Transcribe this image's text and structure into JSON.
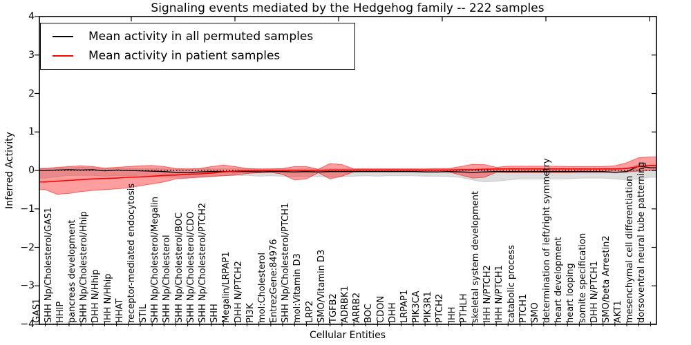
{
  "legend": {
    "items": [
      {
        "label": "Mean activity in all permuted samples",
        "color": "#000000"
      },
      {
        "label": "Mean activity in patient samples",
        "color": "#ff0000"
      }
    ]
  },
  "chart_data": {
    "type": "line",
    "title": "Signaling events mediated by the Hedgehog family -- 222 samples",
    "xlabel": "Cellular Entities",
    "ylabel": "Inferred Activity",
    "ylim": [
      -4,
      4
    ],
    "yticks": [
      4,
      3,
      2,
      1,
      0,
      -1,
      -2,
      -3,
      -4
    ],
    "ytick_labels": [
      "4",
      "3",
      "2",
      "1",
      "0",
      "−1",
      "−2",
      "−3",
      "−4"
    ],
    "grid": false,
    "legend_position": "upper left",
    "zero_line": 0,
    "categories": [
      "GAS1",
      "SHH Np/Cholesterol/GAS1",
      "HHIP",
      "pancreas development",
      "SHH Np/Cholesterol/Hhip",
      "DHH N/Hhip",
      "IHH N/Hhip",
      "HHAT",
      "receptor-mediated endocytosis",
      "STIL",
      "SHH Np/Cholesterol/Megalin",
      "SHH Np/Cholesterol",
      "SHH Np/Cholesterol/BOC",
      "SHH Np/Cholesterol/CDO",
      "SHH Np/Cholesterol/PTCH2",
      "SHH",
      "Megalin/LRPAP1",
      "DHH N/PTCH2",
      "PI3K",
      "mol:Cholesterol",
      "EntrezGene:84976",
      "SHH Np/Cholesterol/PTCH1",
      "mol:Vitamin D3",
      "LRP2",
      "SMO/Vitamin D3",
      "TGFB2",
      "ADRBK1",
      "ARRB2",
      "BOC",
      "CDON",
      "DHH",
      "LRPAP1",
      "PIK3CA",
      "PIK3R1",
      "PTCH2",
      "IHH",
      "PTHLH",
      "skeletal system development",
      "IHH N/PTCH2",
      "IHH N/PTCH1",
      "catabolic process",
      "PTCH1",
      "SMO",
      "determination of left/right symmetry",
      "heart development",
      "heart looping",
      "somite specification",
      "DHH N/PTCH1",
      "SMO/beta Arrestin2",
      "AKT1",
      "mesenchymal cell differentiation",
      "dorsoventral neural tube patterning"
    ],
    "series": [
      {
        "name": "Mean activity in all permuted samples",
        "color": "#000000",
        "values": [
          0.0,
          0.01,
          0.02,
          0.01,
          0.02,
          -0.01,
          0.01,
          0.0,
          -0.01,
          -0.02,
          -0.03,
          -0.05,
          -0.06,
          -0.04,
          -0.03,
          -0.03,
          -0.03,
          -0.03,
          -0.04,
          -0.03,
          -0.03,
          -0.04,
          -0.03,
          -0.04,
          -0.03,
          -0.03,
          -0.03,
          -0.03,
          -0.03,
          -0.03,
          -0.03,
          -0.03,
          -0.04,
          -0.04,
          -0.03,
          -0.04,
          -0.05,
          -0.04,
          -0.03,
          -0.03,
          -0.03,
          -0.03,
          -0.03,
          -0.03,
          -0.03,
          -0.03,
          -0.03,
          -0.03,
          -0.05,
          -0.03,
          0.11,
          0.07
        ]
      },
      {
        "name": "Mean activity in patient samples",
        "color": "#ff0000",
        "values": [
          -0.3,
          -0.28,
          -0.26,
          -0.24,
          -0.22,
          -0.21,
          -0.2,
          -0.18,
          -0.17,
          -0.15,
          -0.13,
          -0.12,
          -0.1,
          -0.09,
          -0.07,
          -0.04,
          -0.02,
          -0.01,
          -0.01,
          0.0,
          0.0,
          0.0,
          0.0,
          0.0,
          0.01,
          0.01,
          0.01,
          0.01,
          0.01,
          0.01,
          0.01,
          0.01,
          0.01,
          0.01,
          0.01,
          0.02,
          0.02,
          0.03,
          0.04,
          0.04,
          0.04,
          0.04,
          0.04,
          0.04,
          0.04,
          0.04,
          0.04,
          0.04,
          0.04,
          0.05,
          0.1,
          0.13
        ]
      }
    ],
    "bands": [
      {
        "name": "permuted-std-band",
        "color": "#bbbbbb",
        "opacity": 0.5,
        "upper": [
          0.06,
          0.06,
          0.07,
          0.08,
          0.07,
          0.05,
          0.06,
          0.06,
          0.05,
          0.05,
          0.04,
          0.03,
          0.03,
          0.04,
          0.04,
          0.04,
          0.04,
          0.04,
          0.03,
          0.04,
          0.04,
          0.03,
          0.04,
          0.03,
          0.04,
          0.04,
          0.04,
          0.04,
          0.04,
          0.04,
          0.04,
          0.04,
          0.03,
          0.03,
          0.04,
          0.04,
          0.03,
          0.04,
          0.04,
          0.04,
          0.04,
          0.04,
          0.04,
          0.04,
          0.04,
          0.04,
          0.04,
          0.04,
          0.03,
          0.05,
          0.16,
          0.14
        ],
        "lower": [
          -0.2,
          -0.16,
          -0.13,
          -0.13,
          -0.13,
          -0.15,
          -0.13,
          -0.14,
          -0.15,
          -0.16,
          -0.17,
          -0.18,
          -0.18,
          -0.16,
          -0.15,
          -0.14,
          -0.13,
          -0.13,
          -0.15,
          -0.14,
          -0.15,
          -0.16,
          -0.15,
          -0.16,
          -0.17,
          -0.16,
          -0.15,
          -0.14,
          -0.15,
          -0.14,
          -0.14,
          -0.14,
          -0.15,
          -0.15,
          -0.16,
          -0.18,
          -0.25,
          -0.3,
          -0.28,
          -0.25,
          -0.22,
          -0.22,
          -0.22,
          -0.22,
          -0.22,
          -0.2,
          -0.2,
          -0.2,
          -0.22,
          -0.25,
          -0.22,
          -0.18
        ]
      },
      {
        "name": "patient-std-band",
        "color": "#ff0000",
        "opacity": 0.38,
        "upper": [
          0.05,
          0.08,
          0.1,
          0.12,
          0.1,
          0.06,
          0.08,
          0.1,
          0.12,
          0.13,
          0.1,
          0.05,
          0.04,
          0.05,
          0.1,
          0.14,
          0.1,
          0.05,
          0.04,
          0.04,
          0.05,
          0.1,
          0.1,
          0.03,
          0.18,
          0.15,
          0.04,
          0.04,
          0.04,
          0.04,
          0.04,
          0.04,
          0.04,
          0.05,
          0.05,
          0.1,
          0.16,
          0.15,
          0.08,
          0.11,
          0.11,
          0.11,
          0.11,
          0.11,
          0.1,
          0.1,
          0.1,
          0.1,
          0.12,
          0.2,
          0.33,
          0.35
        ],
        "lower": [
          -0.5,
          -0.62,
          -0.6,
          -0.55,
          -0.52,
          -0.5,
          -0.48,
          -0.45,
          -0.4,
          -0.35,
          -0.3,
          -0.22,
          -0.2,
          -0.18,
          -0.16,
          -0.14,
          -0.12,
          -0.08,
          -0.06,
          -0.05,
          -0.1,
          -0.25,
          -0.22,
          -0.06,
          -0.22,
          -0.15,
          -0.04,
          -0.03,
          -0.03,
          -0.03,
          -0.03,
          -0.03,
          -0.03,
          -0.04,
          -0.04,
          -0.12,
          -0.2,
          -0.18,
          -0.05,
          -0.06,
          -0.06,
          -0.06,
          -0.06,
          -0.06,
          -0.06,
          -0.05,
          -0.05,
          -0.05,
          -0.05,
          -0.04,
          -0.02,
          0.0
        ]
      }
    ]
  }
}
